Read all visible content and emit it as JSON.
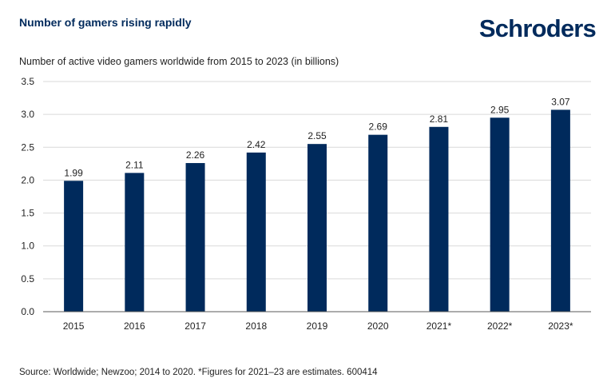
{
  "header": {
    "title": "Number of gamers rising rapidly",
    "logo_text": "Schroders",
    "subtitle": "Number of active video gamers worldwide from 2015 to 2023 (in billions)"
  },
  "footer": {
    "source": "Source: Worldwide; Newzoo; 2014 to 2020. *Figures for 2021–23 are estimates. 600414"
  },
  "colors": {
    "bar": "#002a5c",
    "grid": "#d9d9d9",
    "axis": "#595959",
    "brand": "#002a5c"
  },
  "chart_data": {
    "type": "bar",
    "title": "Number of gamers rising rapidly",
    "subtitle": "Number of active video gamers worldwide from 2015 to 2023 (in billions)",
    "categories": [
      "2015",
      "2016",
      "2017",
      "2018",
      "2019",
      "2020",
      "2021*",
      "2022*",
      "2023*"
    ],
    "values": [
      1.99,
      2.11,
      2.26,
      2.42,
      2.55,
      2.69,
      2.81,
      2.95,
      3.07
    ],
    "value_labels": [
      "1.99",
      "2.11",
      "2.26",
      "2.42",
      "2.55",
      "2.69",
      "2.81",
      "2.95",
      "3.07"
    ],
    "y_ticks": [
      "0.0",
      "0.5",
      "1.0",
      "1.5",
      "2.0",
      "2.5",
      "3.0",
      "3.5"
    ],
    "xlabel": "",
    "ylabel": "",
    "ylim": [
      0,
      3.5
    ],
    "grid": true,
    "legend": "none"
  }
}
